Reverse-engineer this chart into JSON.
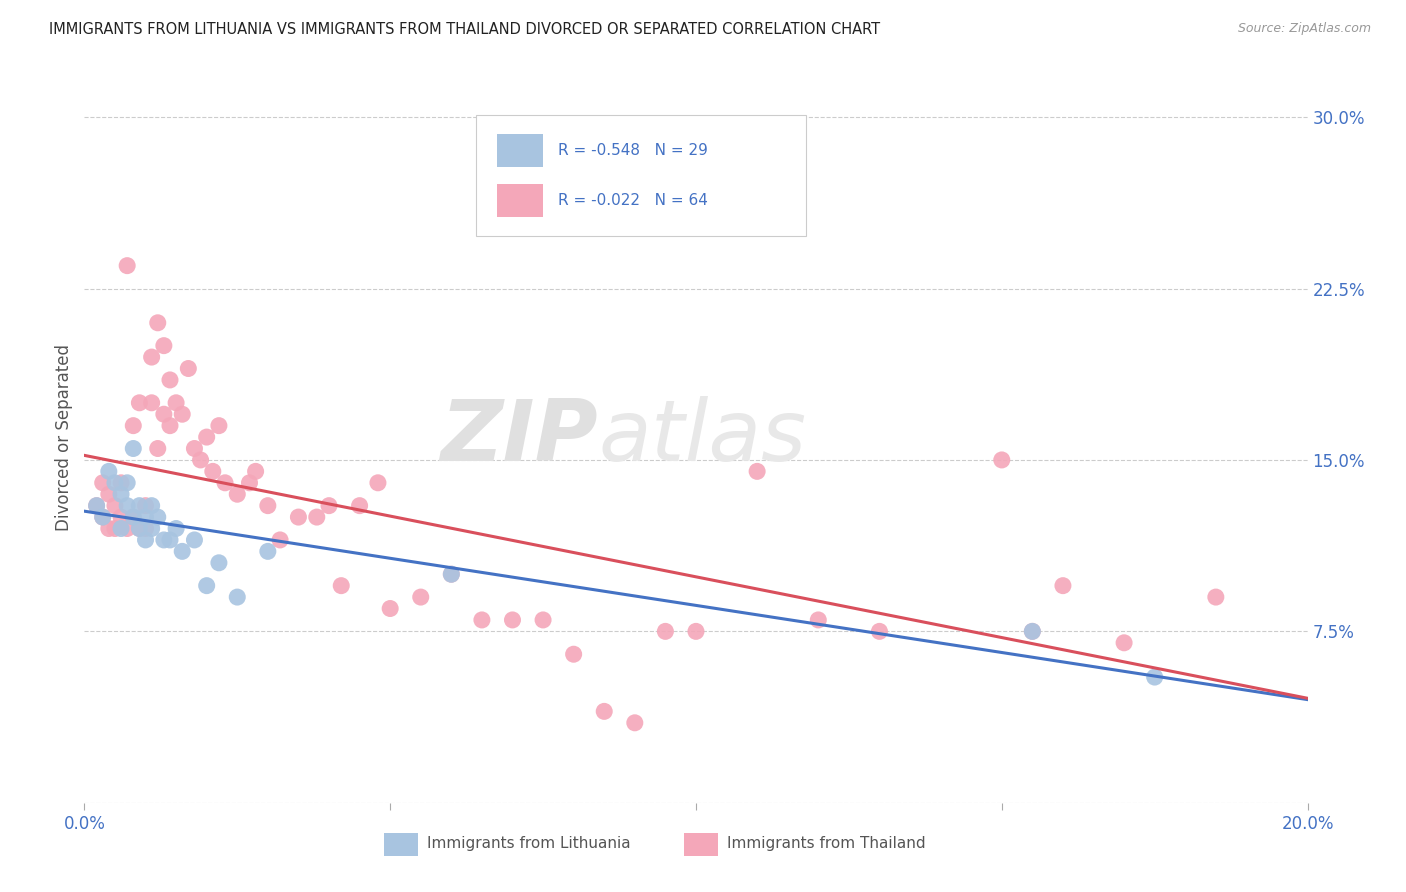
{
  "title": "IMMIGRANTS FROM LITHUANIA VS IMMIGRANTS FROM THAILAND DIVORCED OR SEPARATED CORRELATION CHART",
  "source": "Source: ZipAtlas.com",
  "ylabel": "Divorced or Separated",
  "xmin": 0.0,
  "xmax": 0.2,
  "ymin": 0.0,
  "ymax": 0.32,
  "xticks": [
    0.0,
    0.05,
    0.1,
    0.15,
    0.2
  ],
  "xtick_labels": [
    "0.0%",
    "",
    "",
    "",
    "20.0%"
  ],
  "yticks": [
    0.0,
    0.075,
    0.15,
    0.225,
    0.3
  ],
  "ytick_labels_right": [
    "",
    "7.5%",
    "15.0%",
    "22.5%",
    "30.0%"
  ],
  "legend_r_lithuania": "R = -0.548",
  "legend_n_lithuania": "N = 29",
  "legend_r_thailand": "R = -0.022",
  "legend_n_thailand": "N = 64",
  "legend_label_lithuania": "Immigrants from Lithuania",
  "legend_label_thailand": "Immigrants from Thailand",
  "color_lithuania": "#a8c4e0",
  "color_thailand": "#f4a7b9",
  "color_line_lithuania": "#4472c4",
  "color_line_thailand": "#d94f5c",
  "watermark_zip": "ZIP",
  "watermark_atlas": "atlas",
  "background_color": "#ffffff",
  "grid_color": "#cccccc",
  "title_color": "#222222",
  "axis_label_color": "#4472c4",
  "lithuania_x": [
    0.002,
    0.003,
    0.004,
    0.005,
    0.006,
    0.006,
    0.007,
    0.007,
    0.008,
    0.008,
    0.009,
    0.009,
    0.01,
    0.01,
    0.011,
    0.011,
    0.012,
    0.013,
    0.014,
    0.015,
    0.016,
    0.018,
    0.02,
    0.022,
    0.025,
    0.03,
    0.06,
    0.155,
    0.175
  ],
  "lithuania_y": [
    0.13,
    0.125,
    0.145,
    0.14,
    0.135,
    0.12,
    0.14,
    0.13,
    0.125,
    0.155,
    0.13,
    0.12,
    0.125,
    0.115,
    0.13,
    0.12,
    0.125,
    0.115,
    0.115,
    0.12,
    0.11,
    0.115,
    0.095,
    0.105,
    0.09,
    0.11,
    0.1,
    0.075,
    0.055
  ],
  "thailand_x": [
    0.002,
    0.003,
    0.003,
    0.004,
    0.004,
    0.005,
    0.005,
    0.006,
    0.006,
    0.007,
    0.007,
    0.008,
    0.008,
    0.009,
    0.009,
    0.01,
    0.01,
    0.011,
    0.011,
    0.012,
    0.012,
    0.013,
    0.013,
    0.014,
    0.014,
    0.015,
    0.016,
    0.017,
    0.018,
    0.019,
    0.02,
    0.021,
    0.022,
    0.023,
    0.025,
    0.027,
    0.028,
    0.03,
    0.032,
    0.035,
    0.038,
    0.04,
    0.042,
    0.045,
    0.048,
    0.05,
    0.055,
    0.06,
    0.065,
    0.07,
    0.075,
    0.08,
    0.085,
    0.09,
    0.095,
    0.1,
    0.11,
    0.12,
    0.13,
    0.15,
    0.155,
    0.16,
    0.17,
    0.185
  ],
  "thailand_y": [
    0.13,
    0.125,
    0.14,
    0.12,
    0.135,
    0.12,
    0.13,
    0.125,
    0.14,
    0.12,
    0.235,
    0.125,
    0.165,
    0.12,
    0.175,
    0.13,
    0.12,
    0.195,
    0.175,
    0.21,
    0.155,
    0.2,
    0.17,
    0.185,
    0.165,
    0.175,
    0.17,
    0.19,
    0.155,
    0.15,
    0.16,
    0.145,
    0.165,
    0.14,
    0.135,
    0.14,
    0.145,
    0.13,
    0.115,
    0.125,
    0.125,
    0.13,
    0.095,
    0.13,
    0.14,
    0.085,
    0.09,
    0.1,
    0.08,
    0.08,
    0.08,
    0.065,
    0.04,
    0.035,
    0.075,
    0.075,
    0.145,
    0.08,
    0.075,
    0.15,
    0.075,
    0.095,
    0.07,
    0.09
  ]
}
